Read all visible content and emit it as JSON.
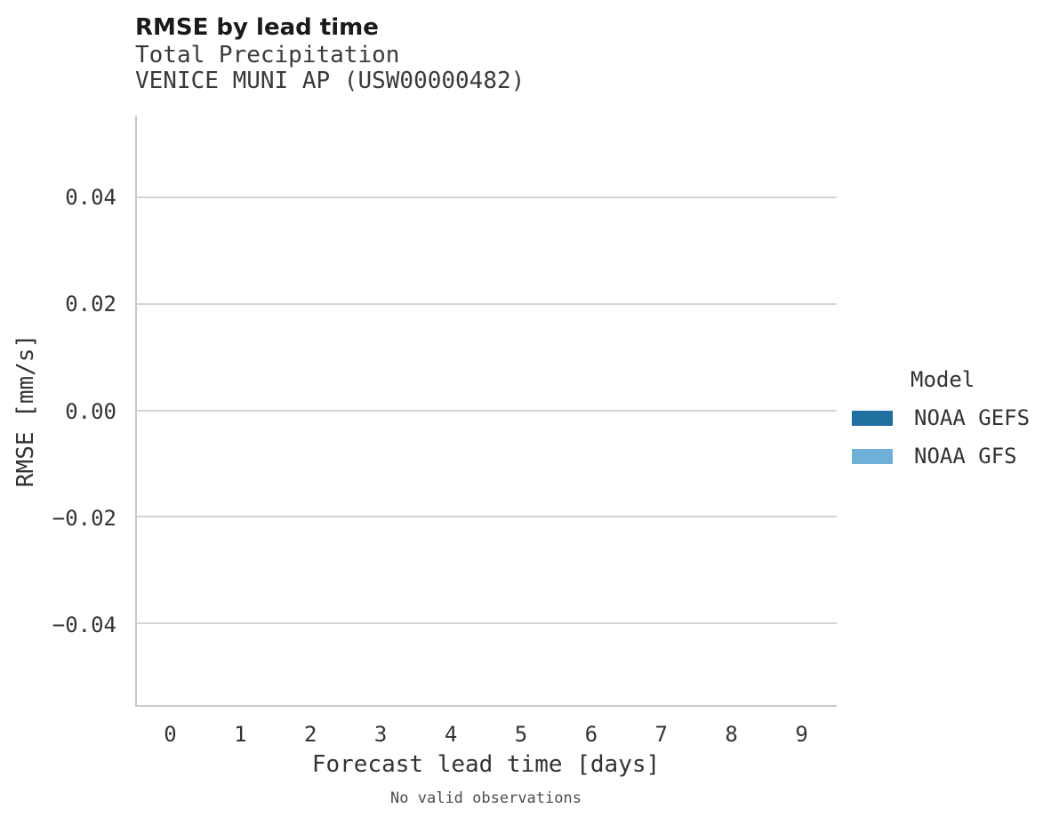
{
  "header": {
    "title": "RMSE by lead time",
    "subtitle": "Total Precipitation",
    "station": "VENICE MUNI AP (USW00000482)"
  },
  "y_axis": {
    "label": "RMSE [mm/s]",
    "lim": [
      -0.0553,
      0.0553
    ],
    "ticks": [
      {
        "label": "0.04",
        "value": 0.04
      },
      {
        "label": "0.02",
        "value": 0.02
      },
      {
        "label": "0.00",
        "value": 0.0
      },
      {
        "label": "−0.02",
        "value": -0.02
      },
      {
        "label": "−0.04",
        "value": -0.04
      }
    ]
  },
  "x_axis": {
    "label": "Forecast lead time [days]",
    "ticks": [
      "0",
      "1",
      "2",
      "3",
      "4",
      "5",
      "6",
      "7",
      "8",
      "9"
    ]
  },
  "legend": {
    "title": "Model",
    "entries": [
      {
        "label": "NOAA GEFS",
        "color": "#1f6f9f"
      },
      {
        "label": "NOAA GFS",
        "color": "#6db1d8"
      }
    ]
  },
  "footnote": "No valid observations",
  "colors": {
    "spine": "#c8c8c8",
    "gridline": "#d5d5d5",
    "noaa_gefs": "#1f6f9f",
    "noaa_gfs": "#6db1d8"
  },
  "chart_data": {
    "type": "line",
    "title": "RMSE by lead time",
    "subtitle": "Total Precipitation",
    "station": "VENICE MUNI AP (USW00000482)",
    "xlabel": "Forecast lead time [days]",
    "ylabel": "RMSE [mm/s]",
    "x": [
      0,
      1,
      2,
      3,
      4,
      5,
      6,
      7,
      8,
      9
    ],
    "ylim": [
      -0.0553,
      0.0553
    ],
    "yticks": [
      0.04,
      0.02,
      0.0,
      -0.02,
      -0.04
    ],
    "grid": "horizontal",
    "legend_title": "Model",
    "legend_position": "right",
    "series": [
      {
        "name": "NOAA GEFS",
        "color": "#1f6f9f",
        "values": []
      },
      {
        "name": "NOAA GFS",
        "color": "#6db1d8",
        "values": []
      }
    ],
    "annotation": "No valid observations"
  }
}
